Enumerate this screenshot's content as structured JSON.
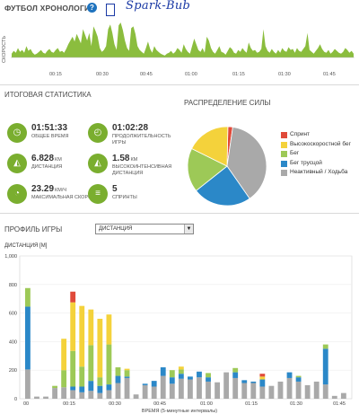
{
  "timeline": {
    "title": "ФУТБОЛ ХРОНОЛОГИЯ",
    "help_icon": "?",
    "handwriting": "Spark-Bub",
    "speed_label": "СКОРОСТЬ",
    "ticks": [
      "00:15",
      "00:30",
      "00:45",
      "01:00",
      "01:15",
      "01:30",
      "01:45"
    ]
  },
  "stats": {
    "title": "ИТОГОВАЯ СТАТИСТИКА",
    "items": [
      {
        "icon": "stopwatch-icon",
        "glyph": "◷",
        "value": "01:51:33",
        "unit": "",
        "label": "ОБЩЕЕ ВРЕМЯ"
      },
      {
        "icon": "clock-icon",
        "glyph": "◴",
        "value": "01:02:28",
        "unit": "",
        "label": "ПРОДОЛЖИТЕЛЬНОСТЬ ИГРЫ"
      },
      {
        "icon": "distance-icon",
        "glyph": "◭",
        "value": "6.828",
        "unit": "КМ",
        "label": "ДИСТАНЦИЯ"
      },
      {
        "icon": "high-intensity-icon",
        "glyph": "◭",
        "value": "1.58",
        "unit": "КМ",
        "label": "ВЫСОКОИНТЕНСИВНАЯ ДИСТАНЦИЯ"
      },
      {
        "icon": "speedometer-icon",
        "glyph": "◔",
        "value": "23.29",
        "unit": "КМ/Ч",
        "label": "МАКСИМАЛЬНАЯ СКОРОСТЬ"
      },
      {
        "icon": "sprint-icon",
        "glyph": "≡",
        "value": "5",
        "unit": "",
        "label": "СПРИНТЫ"
      }
    ]
  },
  "distribution": {
    "title": "РАСПРЕДЕЛЕНИЕ СИЛЫ",
    "segments": [
      {
        "label": "Спринт",
        "color": "#e04a3a",
        "value": 2
      },
      {
        "label": "Высокоскоростной бег",
        "color": "#f4d23b",
        "value": 18
      },
      {
        "label": "Бег",
        "color": "#9dc957",
        "value": 18
      },
      {
        "label": "Бег трусцой",
        "color": "#2b88c8",
        "value": 24
      },
      {
        "label": "Неактивный / Ходьба",
        "color": "#a9a9a9",
        "value": 38
      }
    ]
  },
  "profile": {
    "title": "ПРОФИЛЬ ИГРЫ",
    "selected": "ДИСТАНЦИЯ",
    "select_arrow": "▼"
  },
  "chart_data": {
    "type": "bar",
    "stacked": true,
    "ylabel": "ДИСТАНЦИЯ [М]",
    "xlabel": "ВРЕМЯ (5-минутные интервалы)",
    "ylim": [
      0,
      1000
    ],
    "yticks": [
      "0",
      "200",
      "400",
      "600",
      "800",
      "1,000"
    ],
    "xticks": [
      "00",
      "00:15",
      "00:30",
      "00:45",
      "01:00",
      "01:15",
      "01:30",
      "01:45"
    ],
    "categories": [
      "1",
      "2",
      "3",
      "4",
      "5",
      "6",
      "7",
      "8",
      "9",
      "10",
      "11",
      "12",
      "13",
      "14",
      "15",
      "16",
      "17",
      "18",
      "19",
      "20",
      "21",
      "22",
      "23",
      "24",
      "25",
      "26",
      "27",
      "28",
      "29",
      "30",
      "31",
      "32",
      "33",
      "34",
      "35",
      "36"
    ],
    "series": [
      {
        "name": "Неактивный / Ходьба",
        "color": "#a9a9a9",
        "values": [
          205,
          15,
          15,
          75,
          80,
          60,
          45,
          55,
          40,
          60,
          110,
          145,
          30,
          95,
          85,
          160,
          105,
          140,
          135,
          150,
          120,
          115,
          185,
          145,
          110,
          110,
          85,
          90,
          120,
          145,
          120,
          95,
          120,
          100,
          20,
          40
        ]
      },
      {
        "name": "Бег трусцой",
        "color": "#2b88c8",
        "values": [
          440,
          0,
          0,
          0,
          0,
          25,
          40,
          70,
          50,
          40,
          50,
          10,
          0,
          10,
          40,
          60,
          45,
          35,
          20,
          40,
          30,
          0,
          0,
          40,
          20,
          10,
          50,
          0,
          0,
          40,
          30,
          0,
          0,
          250,
          0,
          0
        ]
      },
      {
        "name": "Бег",
        "color": "#9dc957",
        "values": [
          130,
          0,
          0,
          15,
          120,
          250,
          140,
          250,
          60,
          280,
          60,
          45,
          0,
          0,
          0,
          0,
          50,
          30,
          0,
          0,
          30,
          0,
          0,
          30,
          0,
          0,
          0,
          0,
          0,
          0,
          10,
          0,
          0,
          30,
          0,
          0
        ]
      },
      {
        "name": "Высокоскоростной бег",
        "color": "#f4d23b",
        "values": [
          0,
          0,
          0,
          0,
          220,
          340,
          425,
          250,
          410,
          210,
          0,
          10,
          0,
          0,
          0,
          0,
          0,
          20,
          0,
          0,
          0,
          0,
          0,
          0,
          0,
          0,
          20,
          0,
          0,
          0,
          0,
          0,
          0,
          0,
          0,
          0
        ]
      },
      {
        "name": "Спринт",
        "color": "#e04a3a",
        "values": [
          0,
          0,
          0,
          0,
          0,
          75,
          0,
          0,
          0,
          0,
          0,
          0,
          0,
          0,
          0,
          0,
          0,
          0,
          0,
          0,
          0,
          0,
          0,
          0,
          0,
          0,
          20,
          0,
          0,
          0,
          0,
          0,
          0,
          0,
          0,
          0
        ]
      }
    ]
  },
  "speed_chart": {
    "type": "area",
    "ylabel": "СКОРОСТЬ",
    "color": "#8bbd3e",
    "xlim_minutes": [
      0,
      112
    ],
    "values": [
      4,
      7,
      5,
      10,
      6,
      8,
      5,
      12,
      7,
      9,
      5,
      3,
      4,
      6,
      8,
      5,
      4,
      7,
      9,
      6,
      5,
      8,
      10,
      6,
      7,
      5,
      9,
      14,
      18,
      22,
      17,
      25,
      20,
      15,
      30,
      24,
      18,
      26,
      12,
      33,
      28,
      22,
      10,
      6,
      8,
      12,
      30,
      35,
      26,
      14,
      8,
      34,
      37,
      29,
      18,
      10,
      7,
      31,
      33,
      25,
      12,
      8,
      6,
      4,
      10,
      17,
      9,
      5,
      12,
      8,
      6,
      4,
      3,
      2,
      4,
      5,
      7,
      4,
      6,
      10,
      8,
      5,
      14,
      9,
      6,
      4,
      12,
      20,
      14,
      8,
      6,
      10,
      5,
      22,
      18,
      10,
      6,
      4,
      8,
      12,
      6,
      5,
      3,
      7,
      11,
      9,
      5,
      4,
      8,
      6,
      10,
      7,
      5,
      16,
      10,
      7,
      8,
      5,
      6,
      9,
      30,
      12,
      7,
      5,
      9,
      6,
      4,
      8,
      5,
      10,
      7,
      6,
      11,
      8,
      9,
      5,
      10,
      7,
      6,
      9,
      12,
      26,
      8,
      6,
      4,
      7,
      10,
      14,
      9,
      6,
      5,
      8,
      4,
      6,
      9,
      7,
      5,
      4,
      6,
      10,
      8,
      5,
      7,
      4
    ]
  }
}
